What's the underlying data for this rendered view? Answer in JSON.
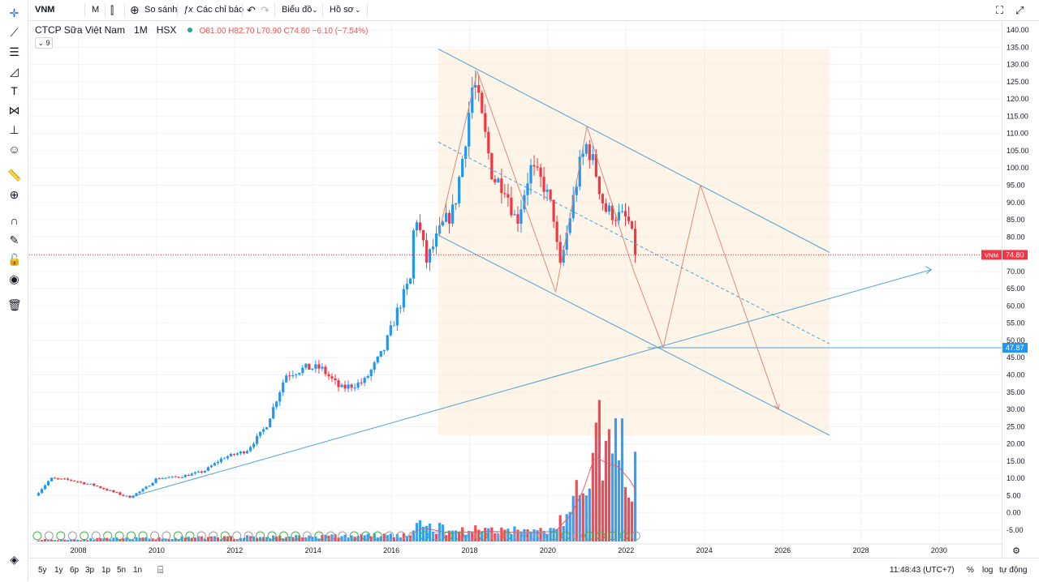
{
  "toolbar": {
    "symbol": "VNM",
    "interval": "M",
    "compare_label": "So sánh",
    "indicators_label": "Các chỉ báo",
    "chart_type_label": "Biểu đồ",
    "profile_label": "Hồ sơ"
  },
  "legend": {
    "name": "CTCP Sữa Việt Nam",
    "interval": "1M",
    "exchange": "HSX",
    "ohlc": "O81.00 H82.70 L70.90 C74.80 −6.10 (−7.54%)",
    "indicator_count": "9"
  },
  "bottom": {
    "ranges": [
      "5y",
      "1y",
      "6p",
      "3p",
      "1p",
      "5n",
      "1n"
    ],
    "clock": "11:48:43 (UTC+7)",
    "percent": "%",
    "log": "log",
    "auto": "tự động"
  },
  "colors": {
    "up": "#2196f3",
    "down": "#f23645",
    "line": "#4aa3d8",
    "arrow": "#e08a78",
    "fill": "#fdebd3"
  },
  "chart_data": {
    "type": "candlestick",
    "x_ticks": [
      "2008",
      "2010",
      "2012",
      "2014",
      "2016",
      "2018",
      "2020",
      "2022",
      "2024",
      "2026",
      "2028",
      "2030"
    ],
    "y_ticks": [
      "140.00",
      "135.00",
      "130.00",
      "125.00",
      "120.00",
      "115.00",
      "110.00",
      "105.00",
      "100.00",
      "95.00",
      "90.00",
      "85.00",
      "80.00",
      "75.00",
      "70.00",
      "65.00",
      "60.00",
      "55.00",
      "50.00",
      "45.00",
      "40.00",
      "35.00",
      "30.00",
      "25.00",
      "20.00",
      "15.00",
      "10.00",
      "5.00",
      "0.00",
      "-5.00"
    ],
    "ylim": [
      -10,
      142
    ],
    "last_price": {
      "symbol": "VNM",
      "value": "74.80"
    },
    "horizontal_level": "47.87",
    "price_anchors": [
      {
        "t": 2006.9,
        "v": 5
      },
      {
        "t": 2007.3,
        "v": 10
      },
      {
        "t": 2007.8,
        "v": 9.5
      },
      {
        "t": 2008.4,
        "v": 8
      },
      {
        "t": 2008.9,
        "v": 6
      },
      {
        "t": 2009.3,
        "v": 4.5
      },
      {
        "t": 2009.7,
        "v": 7
      },
      {
        "t": 2010.0,
        "v": 10
      },
      {
        "t": 2010.6,
        "v": 10.5
      },
      {
        "t": 2011.2,
        "v": 12
      },
      {
        "t": 2011.7,
        "v": 16
      },
      {
        "t": 2012.3,
        "v": 18
      },
      {
        "t": 2012.8,
        "v": 25
      },
      {
        "t": 2013.3,
        "v": 40
      },
      {
        "t": 2013.8,
        "v": 42
      },
      {
        "t": 2014.2,
        "v": 42
      },
      {
        "t": 2014.7,
        "v": 36
      },
      {
        "t": 2015.3,
        "v": 38
      },
      {
        "t": 2015.8,
        "v": 47
      },
      {
        "t": 2016.2,
        "v": 60
      },
      {
        "t": 2016.5,
        "v": 68
      },
      {
        "t": 2016.6,
        "v": 88
      },
      {
        "t": 2016.9,
        "v": 73
      },
      {
        "t": 2017.3,
        "v": 83
      },
      {
        "t": 2017.6,
        "v": 88
      },
      {
        "t": 2017.85,
        "v": 105
      },
      {
        "t": 2018.1,
        "v": 126
      },
      {
        "t": 2018.35,
        "v": 112
      },
      {
        "t": 2018.6,
        "v": 97
      },
      {
        "t": 2018.9,
        "v": 95
      },
      {
        "t": 2019.2,
        "v": 84
      },
      {
        "t": 2019.55,
        "v": 100
      },
      {
        "t": 2019.9,
        "v": 95
      },
      {
        "t": 2020.15,
        "v": 86
      },
      {
        "t": 2020.3,
        "v": 70
      },
      {
        "t": 2020.55,
        "v": 85
      },
      {
        "t": 2020.8,
        "v": 100
      },
      {
        "t": 2021.0,
        "v": 107
      },
      {
        "t": 2021.2,
        "v": 100
      },
      {
        "t": 2021.45,
        "v": 88
      },
      {
        "t": 2021.8,
        "v": 86
      },
      {
        "t": 2022.05,
        "v": 85
      },
      {
        "t": 2022.25,
        "v": 75
      }
    ],
    "volume_anchors": [
      {
        "t": 2006.9,
        "v": 0.4
      },
      {
        "t": 2016.4,
        "v": 1.5
      },
      {
        "t": 2016.8,
        "v": 4
      },
      {
        "t": 2017.5,
        "v": 2.5
      },
      {
        "t": 2018.5,
        "v": 3
      },
      {
        "t": 2019.5,
        "v": 2.5
      },
      {
        "t": 2020.2,
        "v": 3
      },
      {
        "t": 2020.6,
        "v": 8
      },
      {
        "t": 2020.9,
        "v": 15
      },
      {
        "t": 2021.2,
        "v": 25
      },
      {
        "t": 2021.5,
        "v": 23
      },
      {
        "t": 2021.8,
        "v": 22
      },
      {
        "t": 2022.1,
        "v": 18
      },
      {
        "t": 2022.25,
        "v": 15
      }
    ],
    "drawings": {
      "channel_upper": [
        [
          2017.2,
          134.5
        ],
        [
          2027.2,
          75.5
        ]
      ],
      "channel_lower": [
        [
          2017.2,
          80.5
        ],
        [
          2027.2,
          22.5
        ]
      ],
      "channel_mid": [
        [
          2017.2,
          107.5
        ],
        [
          2027.2,
          49
        ]
      ],
      "support_line": [
        [
          2009.3,
          4.5
        ],
        [
          2029.8,
          70.5
        ]
      ],
      "zigzag": [
        [
          2017.2,
          80.5
        ],
        [
          2018.2,
          128
        ],
        [
          2020.2,
          64
        ],
        [
          2021.0,
          112
        ],
        [
          2022.2,
          70
        ],
        [
          2022.95,
          47.87
        ],
        [
          2023.9,
          95
        ],
        [
          2025.9,
          30
        ]
      ]
    }
  }
}
